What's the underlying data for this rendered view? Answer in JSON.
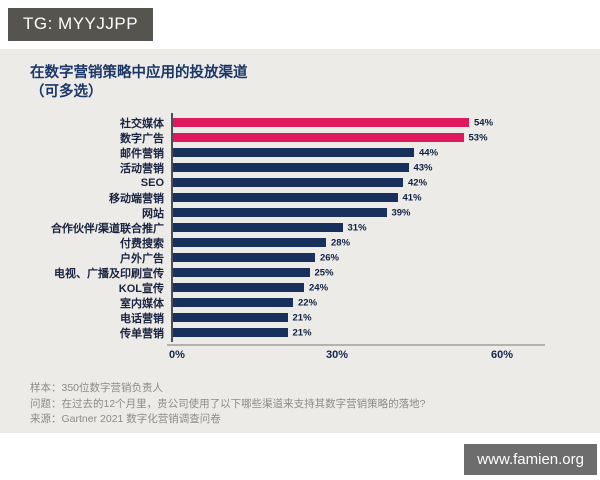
{
  "badges": {
    "top_left": "TG: MYYJJPP",
    "bottom_right": "www.famien.org"
  },
  "chart_data": {
    "type": "bar",
    "orientation": "horizontal",
    "title": "在数字营销策略中应用的投放渠道",
    "subtitle": "（可多选）",
    "categories": [
      "社交媒体",
      "数字广告",
      "邮件营销",
      "活动营销",
      "SEO",
      "移动端营销",
      "网站",
      "合作伙伴/渠道联合推广",
      "付费搜索",
      "户外广告",
      "电视、广播及印刷宣传",
      "KOL宣传",
      "室内媒体",
      "电话营销",
      "传单营销"
    ],
    "values": [
      54,
      53,
      44,
      43,
      42,
      41,
      39,
      31,
      28,
      26,
      25,
      24,
      22,
      21,
      21
    ],
    "value_suffix": "%",
    "highlight_count": 2,
    "xlim": [
      0,
      60
    ],
    "xticks": [
      {
        "value": 0,
        "label": "0%"
      },
      {
        "value": 30,
        "label": "30%"
      },
      {
        "value": 60,
        "label": "60%"
      }
    ],
    "grid": false,
    "legend_position": "none",
    "colors": {
      "highlight_bar": "#e0195e",
      "bar": "#17305c",
      "title": "#1b3767",
      "value_label": "#0e2142",
      "tick_label": "#13274d",
      "panel_background": "#edebe8"
    }
  },
  "footer": {
    "lines": [
      "样本：350位数字营销负责人",
      "问题：在过去的12个月里，贵公司使用了以下哪些渠道来支持其数字营销策略的落地?",
      "来源：Gartner 2021 数字化营销调查问卷"
    ]
  }
}
